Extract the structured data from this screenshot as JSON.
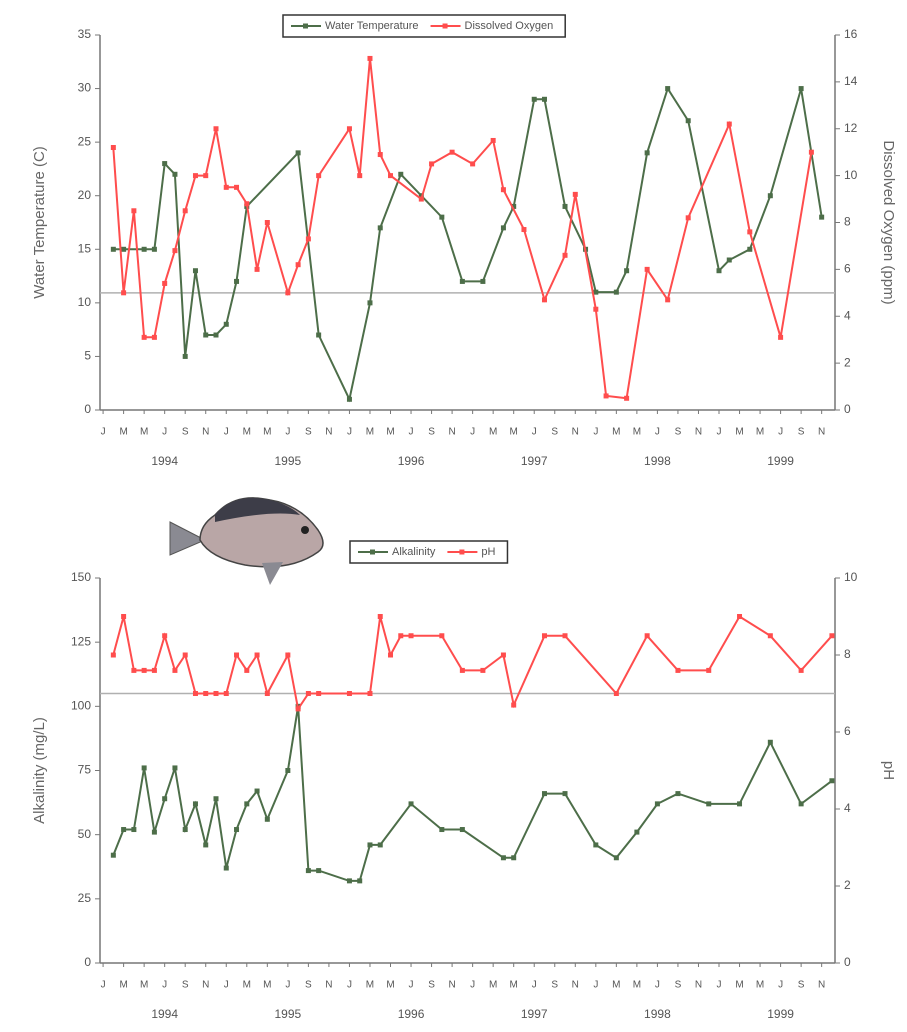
{
  "chart_data": [
    {
      "type": "line",
      "legend": "top",
      "y_label": "Water Temperature (C)",
      "y2_label": "Dissolved Oxygen (ppm)",
      "xlim": [
        "1994-01",
        "1999-12"
      ],
      "ylim": [
        0,
        35
      ],
      "yticks": [
        0,
        5,
        10,
        15,
        20,
        25,
        30,
        35
      ],
      "y2lim": [
        0,
        16
      ],
      "y2ticks": [
        0,
        2,
        4,
        6,
        8,
        10,
        12,
        14,
        16
      ],
      "hline": {
        "axis": "y2",
        "value": 5,
        "color": "#b0b0b0"
      },
      "xticks": [
        {
          "value": "1994-01",
          "label": "J"
        },
        {
          "value": "1994-03",
          "label": "M"
        },
        {
          "value": "1994-05",
          "label": "M"
        },
        {
          "value": "1994-07",
          "label": "J"
        },
        {
          "value": "1994-09",
          "label": "S"
        },
        {
          "value": "1994-11",
          "label": "N"
        },
        {
          "value": "1995-01",
          "label": "J"
        },
        {
          "value": "1995-03",
          "label": "M"
        },
        {
          "value": "1995-05",
          "label": "M"
        },
        {
          "value": "1995-07",
          "label": "J"
        },
        {
          "value": "1995-09",
          "label": "S"
        },
        {
          "value": "1995-11",
          "label": "N"
        },
        {
          "value": "1996-01",
          "label": "J"
        },
        {
          "value": "1996-03",
          "label": "M"
        },
        {
          "value": "1996-05",
          "label": "M"
        },
        {
          "value": "1996-07",
          "label": "J"
        },
        {
          "value": "1996-09",
          "label": "S"
        },
        {
          "value": "1996-11",
          "label": "N"
        },
        {
          "value": "1997-01",
          "label": "J"
        },
        {
          "value": "1997-03",
          "label": "M"
        },
        {
          "value": "1997-05",
          "label": "M"
        },
        {
          "value": "1997-07",
          "label": "J"
        },
        {
          "value": "1997-09",
          "label": "S"
        },
        {
          "value": "1997-11",
          "label": "N"
        },
        {
          "value": "1998-01",
          "label": "J"
        },
        {
          "value": "1998-03",
          "label": "M"
        },
        {
          "value": "1998-05",
          "label": "M"
        },
        {
          "value": "1998-07",
          "label": "J"
        },
        {
          "value": "1998-09",
          "label": "S"
        },
        {
          "value": "1998-11",
          "label": "N"
        },
        {
          "value": "1999-01",
          "label": "J"
        },
        {
          "value": "1999-03",
          "label": "M"
        },
        {
          "value": "1999-05",
          "label": "M"
        },
        {
          "value": "1999-07",
          "label": "J"
        },
        {
          "value": "1999-09",
          "label": "S"
        },
        {
          "value": "1999-11",
          "label": "N"
        }
      ],
      "xgroups": [
        {
          "value": "1994-07",
          "label": "1994"
        },
        {
          "value": "1995-07",
          "label": "1995"
        },
        {
          "value": "1996-07",
          "label": "1996"
        },
        {
          "value": "1997-07",
          "label": "1997"
        },
        {
          "value": "1998-07",
          "label": "1998"
        },
        {
          "value": "1999-07",
          "label": "1999"
        }
      ],
      "series": [
        {
          "name": "Water Temperature",
          "color": "#4d6e49",
          "x": [
            "1994-02",
            "1994-03",
            "1994-05",
            "1994-06",
            "1994-07",
            "1994-08",
            "1994-09",
            "1994-10",
            "1994-11",
            "1994-12",
            "1995-01",
            "1995-02",
            "1995-03",
            "1995-08",
            "1995-10",
            "1996-01",
            "1996-03",
            "1996-04",
            "1996-06",
            "1996-08",
            "1996-10",
            "1996-12",
            "1997-02",
            "1997-04",
            "1997-05",
            "1997-07",
            "1997-08",
            "1997-10",
            "1997-12",
            "1998-01",
            "1998-03",
            "1998-04",
            "1998-06",
            "1998-08",
            "1998-10",
            "1999-01",
            "1999-02",
            "1999-04",
            "1999-06",
            "1999-09",
            "1999-11"
          ],
          "values": [
            15,
            15,
            15,
            15,
            23,
            22,
            5,
            13,
            7,
            7,
            8,
            12,
            19,
            24,
            7,
            1,
            10,
            17,
            22,
            20,
            18,
            12,
            12,
            17,
            19,
            29,
            29,
            19,
            15,
            11,
            11,
            13,
            24,
            30,
            27,
            13,
            14,
            15,
            20,
            30,
            18
          ]
        },
        {
          "name": "Dissolved Oxygen",
          "color": "#ff4d4d",
          "axis": "y2",
          "x": [
            "1994-02",
            "1994-03",
            "1994-04",
            "1994-05",
            "1994-06",
            "1994-07",
            "1994-08",
            "1994-09",
            "1994-10",
            "1994-11",
            "1994-12",
            "1995-01",
            "1995-02",
            "1995-03",
            "1995-04",
            "1995-05",
            "1995-07",
            "1995-08",
            "1995-09",
            "1995-10",
            "1996-01",
            "1996-02",
            "1996-03",
            "1996-04",
            "1996-05",
            "1996-08",
            "1996-09",
            "1996-11",
            "1997-01",
            "1997-03",
            "1997-04",
            "1997-06",
            "1997-08",
            "1997-10",
            "1997-11",
            "1998-01",
            "1998-02",
            "1998-04",
            "1998-06",
            "1998-08",
            "1998-10",
            "1999-02",
            "1999-04",
            "1999-07",
            "1999-10"
          ],
          "values": [
            11.2,
            5,
            8.5,
            3.1,
            3.1,
            5.4,
            6.8,
            8.5,
            10,
            10,
            12,
            9.5,
            9.5,
            8.8,
            6,
            8,
            5,
            6.2,
            7.3,
            10,
            12,
            10,
            15,
            10.9,
            10,
            9,
            10.5,
            11,
            10.5,
            11.5,
            9.4,
            7.7,
            4.7,
            6.6,
            9.2,
            4.3,
            0.6,
            0.5,
            6,
            4.7,
            8.2,
            12.2,
            7.6,
            3.1,
            11
          ]
        }
      ]
    },
    {
      "type": "line",
      "legend": "top",
      "y_label": "Alkalinity  (mg/L)",
      "y2_label": "pH",
      "xlim": [
        "1994-01",
        "1999-12"
      ],
      "ylim": [
        0,
        150
      ],
      "yticks": [
        0,
        25,
        50,
        75,
        100,
        125,
        150
      ],
      "y2lim": [
        0,
        10
      ],
      "y2ticks": [
        0,
        2,
        4,
        6,
        8,
        10
      ],
      "hline": {
        "axis": "y2",
        "value": 7,
        "color": "#b0b0b0"
      },
      "xticks": [
        {
          "value": "1994-01",
          "label": "J"
        },
        {
          "value": "1994-03",
          "label": "M"
        },
        {
          "value": "1994-05",
          "label": "M"
        },
        {
          "value": "1994-07",
          "label": "J"
        },
        {
          "value": "1994-09",
          "label": "S"
        },
        {
          "value": "1994-11",
          "label": "N"
        },
        {
          "value": "1995-01",
          "label": "J"
        },
        {
          "value": "1995-03",
          "label": "M"
        },
        {
          "value": "1995-05",
          "label": "M"
        },
        {
          "value": "1995-07",
          "label": "J"
        },
        {
          "value": "1995-09",
          "label": "S"
        },
        {
          "value": "1995-11",
          "label": "N"
        },
        {
          "value": "1996-01",
          "label": "J"
        },
        {
          "value": "1996-03",
          "label": "M"
        },
        {
          "value": "1996-05",
          "label": "M"
        },
        {
          "value": "1996-07",
          "label": "J"
        },
        {
          "value": "1996-09",
          "label": "S"
        },
        {
          "value": "1996-11",
          "label": "N"
        },
        {
          "value": "1997-01",
          "label": "J"
        },
        {
          "value": "1997-03",
          "label": "M"
        },
        {
          "value": "1997-05",
          "label": "M"
        },
        {
          "value": "1997-07",
          "label": "J"
        },
        {
          "value": "1997-09",
          "label": "S"
        },
        {
          "value": "1997-11",
          "label": "N"
        },
        {
          "value": "1998-01",
          "label": "J"
        },
        {
          "value": "1998-03",
          "label": "M"
        },
        {
          "value": "1998-05",
          "label": "M"
        },
        {
          "value": "1998-07",
          "label": "J"
        },
        {
          "value": "1998-09",
          "label": "S"
        },
        {
          "value": "1998-11",
          "label": "N"
        },
        {
          "value": "1999-01",
          "label": "J"
        },
        {
          "value": "1999-03",
          "label": "M"
        },
        {
          "value": "1999-05",
          "label": "M"
        },
        {
          "value": "1999-07",
          "label": "J"
        },
        {
          "value": "1999-09",
          "label": "S"
        },
        {
          "value": "1999-11",
          "label": "N"
        }
      ],
      "xgroups": [
        {
          "value": "1994-07",
          "label": "1994"
        },
        {
          "value": "1995-07",
          "label": "1995"
        },
        {
          "value": "1996-07",
          "label": "1996"
        },
        {
          "value": "1997-07",
          "label": "1997"
        },
        {
          "value": "1998-07",
          "label": "1998"
        },
        {
          "value": "1999-07",
          "label": "1999"
        }
      ],
      "series": [
        {
          "name": "Alkalinity",
          "color": "#4d6e49",
          "x": [
            "1994-02",
            "1994-03",
            "1994-04",
            "1994-05",
            "1994-06",
            "1994-07",
            "1994-08",
            "1994-09",
            "1994-10",
            "1994-11",
            "1994-12",
            "1995-01",
            "1995-02",
            "1995-03",
            "1995-04",
            "1995-05",
            "1995-07",
            "1995-08",
            "1995-09",
            "1995-10",
            "1996-01",
            "1996-02",
            "1996-03",
            "1996-04",
            "1996-07",
            "1996-10",
            "1996-12",
            "1997-04",
            "1997-05",
            "1997-08",
            "1997-10",
            "1998-01",
            "1998-03",
            "1998-05",
            "1998-07",
            "1998-09",
            "1998-12",
            "1999-03",
            "1999-06",
            "1999-09",
            "1999-12"
          ],
          "values": [
            42,
            52,
            52,
            76,
            51,
            64,
            76,
            52,
            62,
            46,
            64,
            37,
            52,
            62,
            67,
            56,
            75,
            100,
            36,
            36,
            32,
            32,
            46,
            46,
            62,
            52,
            52,
            41,
            41,
            66,
            66,
            46,
            41,
            51,
            62,
            66,
            62,
            62,
            86,
            62,
            71
          ]
        },
        {
          "name": "pH",
          "color": "#ff4d4d",
          "axis": "y2",
          "x": [
            "1994-02",
            "1994-03",
            "1994-04",
            "1994-05",
            "1994-06",
            "1994-07",
            "1994-08",
            "1994-09",
            "1994-10",
            "1994-11",
            "1994-12",
            "1995-01",
            "1995-02",
            "1995-03",
            "1995-04",
            "1995-05",
            "1995-07",
            "1995-08",
            "1995-09",
            "1995-10",
            "1996-01",
            "1996-03",
            "1996-04",
            "1996-05",
            "1996-06",
            "1996-07",
            "1996-10",
            "1996-12",
            "1997-02",
            "1997-04",
            "1997-05",
            "1997-08",
            "1997-10",
            "1998-03",
            "1998-06",
            "1998-09",
            "1998-12",
            "1999-03",
            "1999-06",
            "1999-09",
            "1999-12"
          ],
          "values": [
            8,
            9,
            7.6,
            7.6,
            7.6,
            8.5,
            7.6,
            8,
            7,
            7,
            7,
            7,
            8,
            7.6,
            8,
            7,
            8,
            6.6,
            7,
            7,
            7,
            7,
            9,
            8,
            8.5,
            8.5,
            8.5,
            7.6,
            7.6,
            8,
            6.7,
            8.5,
            8.5,
            7,
            8.5,
            7.6,
            7.6,
            9,
            8.5,
            7.6,
            8.5
          ]
        }
      ]
    }
  ]
}
